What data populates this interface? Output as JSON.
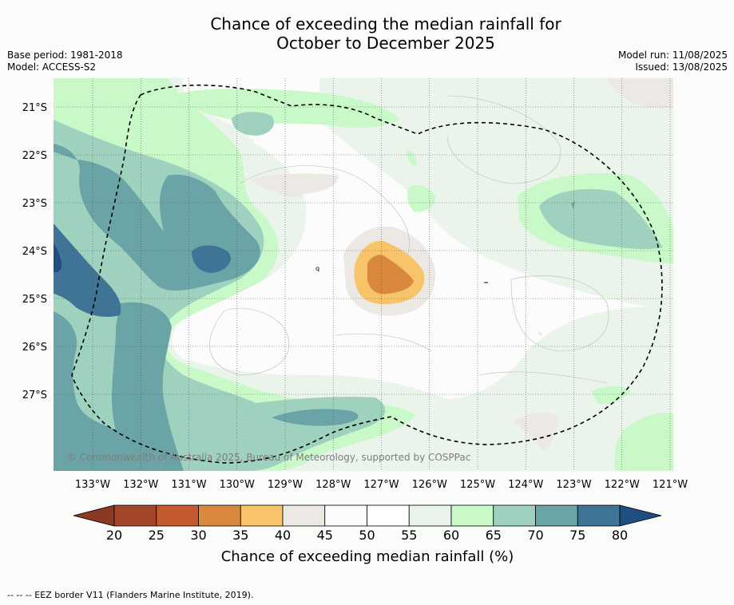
{
  "title": {
    "line1": "Chance of exceeding the median rainfall for",
    "line2": "October to December 2025"
  },
  "meta_left": {
    "base_period": "Base period: 1981-2018",
    "model": "Model: ACCESS-S2"
  },
  "meta_right": {
    "model_run": "Model run: 11/08/2025",
    "issued": "Issued: 13/08/2025"
  },
  "map": {
    "lat_labels": [
      "21°S",
      "22°S",
      "23°S",
      "24°S",
      "25°S",
      "26°S",
      "27°S"
    ],
    "lon_labels": [
      "133°W",
      "132°W",
      "131°W",
      "130°W",
      "129°W",
      "128°W",
      "127°W",
      "126°W",
      "125°W",
      "124°W",
      "123°W",
      "122°W",
      "121°W"
    ],
    "copyright": "© Commonwealth of Australia 2025, Bureau of Meteorology, supported by COSPPac",
    "border_style": "dashed",
    "grid": true
  },
  "colorbar": {
    "ticks": [
      "20",
      "25",
      "30",
      "35",
      "40",
      "45",
      "50",
      "55",
      "60",
      "65",
      "70",
      "75",
      "80"
    ],
    "colors": [
      "#a3462a",
      "#c55a2e",
      "#d9893e",
      "#f7c46a",
      "#ece9e4",
      "#fbfcfb",
      "#ffffff",
      "#ebf4ea",
      "#c9f8c9",
      "#9fd2be",
      "#6aa4a7",
      "#3f7497"
    ],
    "under_color": "#8a3a22",
    "over_color": "#1e4e82",
    "label": "Chance of exceeding median rainfall (%)"
  },
  "footer": {
    "eez_note": "--  --  -- EEZ border V11 (Flanders Marine Institute, 2019)."
  }
}
